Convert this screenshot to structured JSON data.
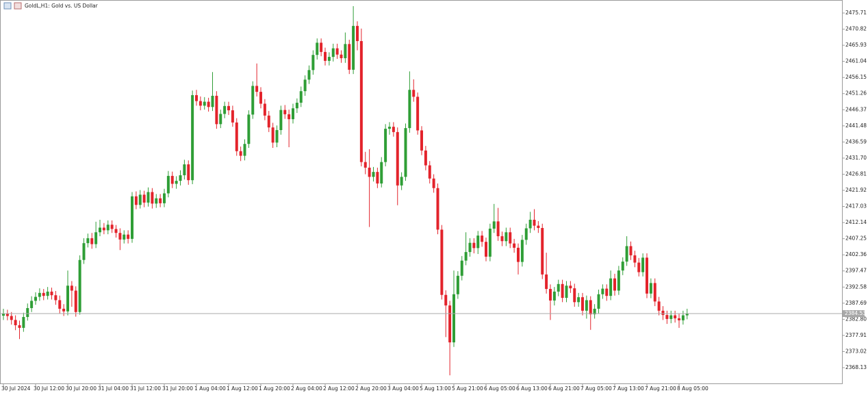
{
  "chart_data": {
    "type": "candlestick",
    "title": "GoldL,H1: Gold vs. US Dollar",
    "up_color": "#2f9e36",
    "down_color": "#e3232b",
    "grid": false,
    "ylim": [
      2363.35,
      2479.66
    ],
    "yticks": [
      2475.71,
      2470.82,
      2465.93,
      2461.04,
      2456.15,
      2451.26,
      2446.37,
      2441.48,
      2436.59,
      {
        "value": 2431.7,
        "label": "2431.70"
      },
      2426.81,
      2421.92,
      2417.03,
      2412.14,
      2407.25,
      2402.36,
      2397.47,
      2392.58,
      2387.69,
      {
        "value": 2382.8,
        "label": "2382.80"
      },
      2377.91,
      2373.02,
      2368.13
    ],
    "last_price": 2384.53,
    "categories": [
      "30 Jul 2024",
      null,
      null,
      null,
      null,
      null,
      null,
      null,
      "30 Jul 12:00",
      null,
      null,
      null,
      null,
      null,
      null,
      null,
      "30 Jul 20:00",
      null,
      null,
      null,
      null,
      null,
      null,
      null,
      "31 Jul 04:00",
      null,
      null,
      null,
      null,
      null,
      null,
      null,
      "31 Jul 12:00",
      null,
      null,
      null,
      null,
      null,
      null,
      null,
      "31 Jul 20:00",
      null,
      null,
      null,
      null,
      null,
      null,
      null,
      "1 Aug 04:00",
      null,
      null,
      null,
      null,
      null,
      null,
      null,
      "1 Aug 12:00",
      null,
      null,
      null,
      null,
      null,
      null,
      null,
      "1 Aug 20:00",
      null,
      null,
      null,
      null,
      null,
      null,
      null,
      "2 Aug 04:00",
      null,
      null,
      null,
      null,
      null,
      null,
      null,
      "2 Aug 12:00",
      null,
      null,
      null,
      null,
      null,
      null,
      null,
      "2 Aug 20:00",
      null,
      null,
      null,
      null,
      null,
      null,
      null,
      "3 Aug 04:00",
      null,
      null,
      null,
      null,
      null,
      null,
      null,
      "5 Aug 13:00",
      null,
      null,
      null,
      null,
      null,
      null,
      null,
      "5 Aug 21:00",
      null,
      null,
      null,
      null,
      null,
      null,
      null,
      "6 Aug 05:00",
      null,
      null,
      null,
      null,
      null,
      null,
      null,
      "6 Aug 13:00",
      null,
      null,
      null,
      null,
      null,
      null,
      null,
      "6 Aug 21:00",
      null,
      null,
      null,
      null,
      null,
      null,
      null,
      "7 Aug 05:00",
      null,
      null,
      null,
      null,
      null,
      null,
      null,
      "7 Aug 13:00",
      null,
      null,
      null,
      null,
      null,
      null,
      null,
      "7 Aug 21:00",
      null,
      null,
      null,
      null,
      null,
      null,
      null,
      "8 Aug 05:00",
      null,
      null
    ],
    "open": [
      2383.9,
      2384.5,
      2383.8,
      2382.6,
      2381.0,
      2380.2,
      2383.5,
      2386.2,
      2388.4,
      2389.6,
      2390.8,
      2389.9,
      2391.2,
      2390.1,
      2388.6,
      2386.0,
      2385.2,
      2393.0,
      2391.5,
      2385.0,
      2400.8,
      2405.9,
      2407.4,
      2405.6,
      2409.2,
      2410.6,
      2409.8,
      2411.5,
      2410.2,
      2409.0,
      2407.0,
      2408.5,
      2407.2,
      2420.1,
      2417.5,
      2420.6,
      2418.2,
      2421.4,
      2417.9,
      2419.5,
      2418.0,
      2421.0,
      2426.3,
      2423.9,
      2424.8,
      2426.5,
      2429.8,
      2425.0,
      2450.8,
      2449.0,
      2447.6,
      2448.8,
      2447.2,
      2450.6,
      2442.0,
      2445.1,
      2447.5,
      2446.2,
      2442.5,
      2433.8,
      2432.4,
      2436.0,
      2444.9,
      2453.6,
      2451.8,
      2448.2,
      2444.6,
      2441.0,
      2436.4,
      2440.2,
      2446.3,
      2445.0,
      2443.5,
      2446.8,
      2448.5,
      2452.0,
      2455.5,
      2458.4,
      2463.0,
      2466.7,
      2463.9,
      2461.2,
      2462.4,
      2465.0,
      2463.1,
      2462.0,
      2466.3,
      2458.5,
      2471.8,
      2467.2,
      2430.5,
      2428.8,
      2426.0,
      2427.5,
      2424.0,
      2430.5,
      2440.6,
      2441.2,
      2439.6,
      2423.4,
      2426.0,
      2440.8,
      2452.4,
      2450.3,
      2440.1,
      2434.0,
      2429.5,
      2425.5,
      2422.6,
      2410.0,
      2390.2,
      2387.0,
      2375.8,
      2390.4,
      2396.0,
      2400.6,
      2403.2,
      2406.0,
      2404.4,
      2408.2,
      2406.3,
      2401.8,
      2410.3,
      2412.5,
      2408.0,
      2406.5,
      2409.2,
      2405.8,
      2404.5,
      2400.2,
      2406.9,
      2410.4,
      2413.0,
      2411.2,
      2410.5,
      2396.4,
      2392.0,
      2388.5,
      2391.2,
      2393.5,
      2389.3,
      2393.0,
      2392.2,
      2388.0,
      2389.5,
      2385.4,
      2388.6,
      2384.3,
      2386.0,
      2390.4,
      2392.1,
      2389.9,
      2395.2,
      2391.5,
      2397.6,
      2400.3,
      2405.0,
      2402.2,
      2400.0,
      2397.1,
      2401.5,
      2390.6,
      2393.8,
      2388.2,
      2385.4,
      2384.1,
      2382.9,
      2384.0,
      2383.1,
      2382.5,
      2384.0
    ],
    "high": [
      2386.0,
      2385.7,
      2385.0,
      2384.0,
      2382.4,
      2384.8,
      2387.6,
      2389.8,
      2391.0,
      2392.2,
      2392.0,
      2392.6,
      2392.4,
      2391.4,
      2390.0,
      2387.4,
      2397.6,
      2394.4,
      2392.8,
      2402.2,
      2407.4,
      2408.8,
      2409.0,
      2412.4,
      2413.0,
      2412.0,
      2412.8,
      2412.8,
      2411.4,
      2410.4,
      2409.8,
      2409.8,
      2421.4,
      2421.6,
      2422.0,
      2421.8,
      2422.8,
      2422.6,
      2420.8,
      2420.8,
      2422.4,
      2427.8,
      2427.6,
      2426.2,
      2428.0,
      2431.2,
      2431.0,
      2452.2,
      2452.4,
      2450.4,
      2450.2,
      2450.0,
      2457.8,
      2452.0,
      2446.4,
      2448.8,
      2448.8,
      2447.6,
      2443.8,
      2435.2,
      2437.4,
      2446.2,
      2455.0,
      2460.4,
      2453.2,
      2449.6,
      2446.0,
      2442.4,
      2441.6,
      2447.6,
      2447.8,
      2446.4,
      2448.2,
      2449.8,
      2453.4,
      2456.8,
      2459.8,
      2464.4,
      2468.0,
      2468.0,
      2465.2,
      2463.8,
      2466.4,
      2466.4,
      2464.4,
      2469.8,
      2467.6,
      2477.8,
      2473.2,
      2471.0,
      2433.6,
      2434.4,
      2429.0,
      2428.8,
      2432.0,
      2442.0,
      2442.6,
      2442.6,
      2441.0,
      2427.4,
      2442.2,
      2458.0,
      2455.6,
      2451.6,
      2441.4,
      2435.4,
      2430.8,
      2426.8,
      2424.0,
      2411.4,
      2391.6,
      2388.4,
      2397.6,
      2397.4,
      2402.0,
      2409.2,
      2407.4,
      2407.4,
      2409.6,
      2409.6,
      2407.6,
      2411.8,
      2417.8,
      2416.6,
      2409.4,
      2410.6,
      2410.6,
      2407.2,
      2405.8,
      2408.4,
      2411.8,
      2415.4,
      2416.2,
      2412.6,
      2411.8,
      2403.0,
      2393.4,
      2392.6,
      2394.8,
      2394.8,
      2394.4,
      2394.4,
      2393.6,
      2390.8,
      2390.8,
      2390.0,
      2389.8,
      2387.4,
      2391.8,
      2393.4,
      2393.4,
      2397.6,
      2396.6,
      2399.0,
      2401.6,
      2408.0,
      2406.4,
      2403.6,
      2401.4,
      2402.8,
      2402.8,
      2395.2,
      2395.2,
      2389.6,
      2386.8,
      2385.4,
      2385.4,
      2385.4,
      2384.4,
      2385.4,
      2386.0
    ],
    "low": [
      2382.6,
      2382.5,
      2381.2,
      2379.5,
      2376.8,
      2379.0,
      2382.4,
      2385.0,
      2387.2,
      2388.4,
      2388.6,
      2388.8,
      2388.8,
      2387.2,
      2384.6,
      2383.8,
      2384.0,
      2386.6,
      2383.6,
      2384.2,
      2399.6,
      2404.6,
      2404.2,
      2404.4,
      2408.0,
      2408.6,
      2408.6,
      2409.0,
      2407.6,
      2403.8,
      2405.8,
      2405.8,
      2406.0,
      2416.2,
      2416.4,
      2416.8,
      2417.0,
      2416.4,
      2416.6,
      2416.8,
      2416.8,
      2419.8,
      2422.6,
      2422.4,
      2423.4,
      2425.2,
      2423.6,
      2423.8,
      2447.6,
      2446.2,
      2446.4,
      2445.8,
      2446.0,
      2440.6,
      2440.8,
      2443.8,
      2444.8,
      2441.2,
      2432.4,
      2430.8,
      2431.0,
      2434.8,
      2443.6,
      2450.4,
      2446.8,
      2443.2,
      2439.6,
      2434.8,
      2435.0,
      2438.8,
      2443.6,
      2435.0,
      2442.2,
      2445.4,
      2447.2,
      2450.6,
      2454.2,
      2457.0,
      2461.6,
      2462.6,
      2459.8,
      2459.8,
      2461.0,
      2461.8,
      2460.6,
      2460.6,
      2457.2,
      2457.2,
      2464.4,
      2429.2,
      2426.8,
      2410.8,
      2424.6,
      2422.6,
      2422.8,
      2429.2,
      2438.8,
      2438.2,
      2417.4,
      2422.0,
      2424.8,
      2439.4,
      2448.8,
      2438.8,
      2432.6,
      2428.0,
      2424.0,
      2421.2,
      2408.6,
      2388.8,
      2377.4,
      2365.8,
      2374.4,
      2389.0,
      2394.6,
      2399.2,
      2401.8,
      2402.8,
      2402.6,
      2404.8,
      2400.4,
      2400.4,
      2409.0,
      2406.6,
      2405.0,
      2405.0,
      2404.4,
      2403.0,
      2396.4,
      2398.8,
      2405.4,
      2409.0,
      2409.8,
      2409.0,
      2395.0,
      2390.6,
      2382.6,
      2387.0,
      2389.8,
      2388.0,
      2388.0,
      2390.8,
      2386.6,
      2386.6,
      2384.0,
      2383.0,
      2379.6,
      2383.0,
      2384.6,
      2389.0,
      2388.4,
      2388.6,
      2390.0,
      2390.2,
      2396.2,
      2399.0,
      2400.8,
      2398.6,
      2395.8,
      2395.8,
      2389.2,
      2389.2,
      2386.8,
      2384.0,
      2382.6,
      2381.4,
      2381.6,
      2381.8,
      2380.2,
      2381.2,
      2382.8
    ],
    "close": [
      2384.5,
      2383.8,
      2382.6,
      2381.0,
      2380.2,
      2383.5,
      2386.2,
      2388.4,
      2389.6,
      2390.8,
      2389.9,
      2391.2,
      2390.1,
      2388.6,
      2386.0,
      2385.2,
      2393.0,
      2391.5,
      2385.0,
      2400.8,
      2405.9,
      2407.4,
      2405.6,
      2409.2,
      2410.6,
      2409.8,
      2411.5,
      2410.2,
      2409.0,
      2407.0,
      2408.5,
      2407.2,
      2420.1,
      2417.5,
      2420.6,
      2418.2,
      2421.4,
      2417.9,
      2419.5,
      2418.0,
      2421.0,
      2426.3,
      2423.9,
      2424.8,
      2426.5,
      2429.8,
      2425.0,
      2450.8,
      2449.0,
      2447.6,
      2448.8,
      2447.2,
      2450.6,
      2442.0,
      2445.1,
      2447.5,
      2446.2,
      2442.5,
      2433.8,
      2432.4,
      2436.0,
      2444.9,
      2453.6,
      2451.8,
      2448.2,
      2444.6,
      2441.0,
      2436.4,
      2440.2,
      2446.3,
      2445.0,
      2443.5,
      2446.8,
      2448.5,
      2452.0,
      2455.5,
      2458.4,
      2463.0,
      2466.7,
      2463.9,
      2461.2,
      2462.4,
      2465.0,
      2463.1,
      2462.0,
      2466.3,
      2458.5,
      2471.8,
      2467.2,
      2430.5,
      2428.8,
      2426.0,
      2427.5,
      2424.0,
      2430.5,
      2440.6,
      2441.2,
      2439.6,
      2423.4,
      2426.0,
      2440.8,
      2452.4,
      2450.3,
      2440.1,
      2434.0,
      2429.5,
      2425.5,
      2422.6,
      2410.0,
      2390.2,
      2387.0,
      2375.8,
      2390.4,
      2396.0,
      2400.6,
      2403.2,
      2406.0,
      2404.4,
      2408.2,
      2406.3,
      2401.8,
      2410.3,
      2412.5,
      2408.0,
      2406.5,
      2409.2,
      2405.8,
      2404.5,
      2400.2,
      2406.9,
      2410.4,
      2413.0,
      2411.2,
      2410.5,
      2396.4,
      2392.0,
      2388.5,
      2391.2,
      2393.5,
      2389.3,
      2393.0,
      2392.2,
      2388.0,
      2389.5,
      2385.4,
      2388.6,
      2384.3,
      2386.0,
      2390.4,
      2392.1,
      2389.9,
      2395.2,
      2391.5,
      2397.6,
      2400.3,
      2405.0,
      2402.2,
      2400.0,
      2397.1,
      2401.5,
      2390.6,
      2393.8,
      2388.2,
      2385.4,
      2384.1,
      2382.9,
      2384.0,
      2383.1,
      2382.5,
      2384.0,
      2384.53
    ]
  }
}
